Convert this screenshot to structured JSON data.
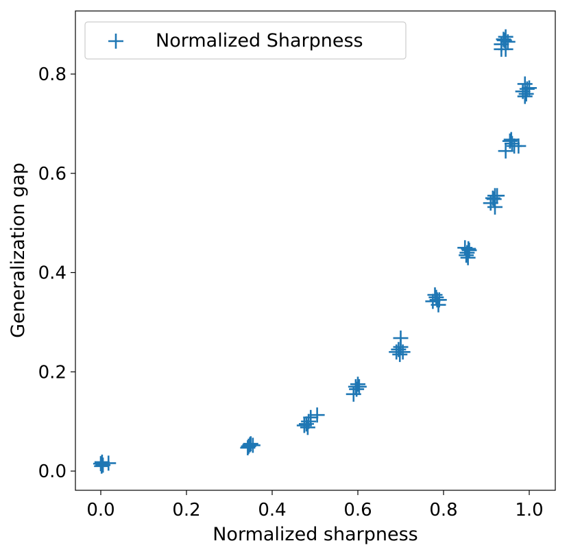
{
  "chart_data": {
    "type": "scatter",
    "xlabel": "Normalized sharpness",
    "ylabel": "Generalization gap",
    "xlim": [
      -0.06,
      1.06
    ],
    "ylim": [
      -0.04,
      0.925
    ],
    "xticks": [
      "0.0",
      "0.2",
      "0.4",
      "0.6",
      "0.8",
      "1.0"
    ],
    "yticks": [
      "0.0",
      "0.2",
      "0.4",
      "0.6",
      "0.8"
    ],
    "grid": false,
    "legend_position": "top-left",
    "marker": "plus",
    "color": "#1f77b4",
    "series": [
      {
        "name": "Normalized Sharpness",
        "points": [
          [
            0.0,
            0.015
          ],
          [
            0.005,
            0.012
          ],
          [
            0.003,
            0.018
          ],
          [
            0.018,
            0.016
          ],
          [
            0.002,
            0.01
          ],
          [
            0.345,
            0.05
          ],
          [
            0.35,
            0.055
          ],
          [
            0.355,
            0.052
          ],
          [
            0.343,
            0.047
          ],
          [
            0.348,
            0.053
          ],
          [
            0.475,
            0.092
          ],
          [
            0.48,
            0.095
          ],
          [
            0.485,
            0.1
          ],
          [
            0.49,
            0.108
          ],
          [
            0.505,
            0.113
          ],
          [
            0.483,
            0.088
          ],
          [
            0.59,
            0.155
          ],
          [
            0.595,
            0.17
          ],
          [
            0.6,
            0.175
          ],
          [
            0.603,
            0.17
          ],
          [
            0.597,
            0.165
          ],
          [
            0.69,
            0.24
          ],
          [
            0.695,
            0.245
          ],
          [
            0.7,
            0.268
          ],
          [
            0.705,
            0.24
          ],
          [
            0.698,
            0.235
          ],
          [
            0.7,
            0.25
          ],
          [
            0.78,
            0.355
          ],
          [
            0.785,
            0.345
          ],
          [
            0.79,
            0.345
          ],
          [
            0.775,
            0.342
          ],
          [
            0.788,
            0.335
          ],
          [
            0.783,
            0.35
          ],
          [
            0.85,
            0.45
          ],
          [
            0.855,
            0.44
          ],
          [
            0.86,
            0.445
          ],
          [
            0.853,
            0.435
          ],
          [
            0.857,
            0.43
          ],
          [
            0.858,
            0.448
          ],
          [
            0.91,
            0.54
          ],
          [
            0.915,
            0.55
          ],
          [
            0.92,
            0.555
          ],
          [
            0.925,
            0.555
          ],
          [
            0.92,
            0.532
          ],
          [
            0.918,
            0.548
          ],
          [
            0.945,
            0.645
          ],
          [
            0.955,
            0.665
          ],
          [
            0.96,
            0.66
          ],
          [
            0.965,
            0.655
          ],
          [
            0.975,
            0.655
          ],
          [
            0.958,
            0.668
          ],
          [
            0.985,
            0.765
          ],
          [
            0.99,
            0.78
          ],
          [
            0.995,
            0.77
          ],
          [
            1.0,
            0.772
          ],
          [
            0.99,
            0.755
          ],
          [
            0.993,
            0.76
          ],
          [
            0.935,
            0.86
          ],
          [
            0.94,
            0.87
          ],
          [
            0.945,
            0.875
          ],
          [
            0.95,
            0.865
          ],
          [
            0.945,
            0.85
          ],
          [
            0.935,
            0.85
          ],
          [
            0.942,
            0.868
          ]
        ]
      }
    ]
  }
}
